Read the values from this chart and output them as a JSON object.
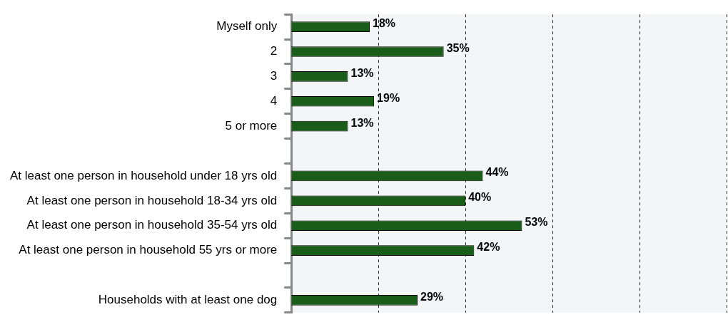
{
  "chart_data": {
    "type": "bar",
    "orientation": "horizontal",
    "categories": [
      "Myself only",
      "2",
      "3",
      "4",
      "5 or more",
      null,
      "At least one person in household under 18 yrs old",
      "At least one person in household 18-34 yrs old",
      "At least one person in household 35-54 yrs old",
      "At least one person in household 55 yrs or more",
      null,
      "Households with at least one dog"
    ],
    "values": [
      18,
      35,
      13,
      19,
      13,
      null,
      44,
      40,
      53,
      42,
      null,
      29
    ],
    "value_labels": [
      "18%",
      "35%",
      "13%",
      "19%",
      "13%",
      null,
      "44%",
      "40%",
      "53%",
      "42%",
      null,
      "29%"
    ],
    "color": "#1a5c1a",
    "xlim": [
      0,
      100
    ],
    "xticks": [
      {
        "value": 0,
        "label": null
      },
      {
        "value": 20,
        "label": null
      },
      {
        "value": 40,
        "label": null
      },
      {
        "value": 60,
        "label": null
      },
      {
        "value": 80,
        "label": null
      },
      {
        "value": 100,
        "label": null
      }
    ],
    "grid": "x",
    "tick_labels": "y",
    "legend": false
  }
}
